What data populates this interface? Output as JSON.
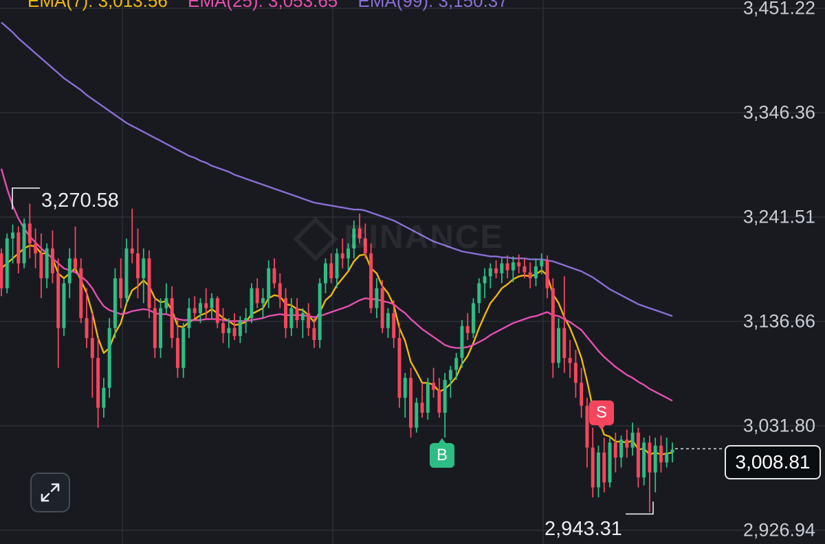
{
  "legend": {
    "ema7": "EMA(7): 3,013.56",
    "ema25": "EMA(25): 3,053.65",
    "ema99": "EMA(99): 3,150.37"
  },
  "colors": {
    "up": "#2ebd85",
    "down": "#f6465d",
    "ema7": "#f0b90b",
    "ema25": "#e84fb1",
    "ema99": "#8c6fd6",
    "grid": "#2b2f36"
  },
  "watermark": "BINANCE",
  "current_price": "3,008.81",
  "high_label": "3,270.58",
  "low_label": "2,943.31",
  "markers": {
    "buy": "B",
    "sell": "S"
  },
  "expand_icon": "expand-arrows-icon",
  "chart_data": {
    "type": "candlestick",
    "y_axis_ticks": [
      "3,451.22",
      "3,346.36",
      "3,241.51",
      "3,136.66",
      "3,031.80",
      "2,926.94"
    ],
    "ylim": [
      2926.94,
      3451.22
    ],
    "grid": true,
    "current_price": 3008.81,
    "high": 3270.58,
    "low": 2943.31,
    "ohlc": [
      [
        3205,
        3210,
        3162,
        3170
      ],
      [
        3170,
        3225,
        3165,
        3220
      ],
      [
        3220,
        3234,
        3195,
        3226
      ],
      [
        3226,
        3232,
        3185,
        3195
      ],
      [
        3195,
        3240,
        3190,
        3235
      ],
      [
        3235,
        3255,
        3200,
        3215
      ],
      [
        3215,
        3230,
        3190,
        3205
      ],
      [
        3205,
        3225,
        3160,
        3180
      ],
      [
        3180,
        3215,
        3170,
        3210
      ],
      [
        3210,
        3228,
        3175,
        3185
      ],
      [
        3185,
        3200,
        3090,
        3130
      ],
      [
        3130,
        3180,
        3122,
        3175
      ],
      [
        3175,
        3210,
        3160,
        3200
      ],
      [
        3200,
        3232,
        3185,
        3190
      ],
      [
        3190,
        3200,
        3135,
        3140
      ],
      [
        3140,
        3170,
        3110,
        3120
      ],
      [
        3120,
        3145,
        3060,
        3100
      ],
      [
        3100,
        3120,
        3030,
        3050
      ],
      [
        3050,
        3080,
        3040,
        3070
      ],
      [
        3070,
        3140,
        3060,
        3130
      ],
      [
        3130,
        3190,
        3120,
        3180
      ],
      [
        3180,
        3200,
        3150,
        3160
      ],
      [
        3160,
        3220,
        3155,
        3210
      ],
      [
        3210,
        3250,
        3195,
        3205
      ],
      [
        3205,
        3230,
        3160,
        3180
      ],
      [
        3180,
        3210,
        3155,
        3200
      ],
      [
        3200,
        3208,
        3140,
        3150
      ],
      [
        3150,
        3160,
        3100,
        3110
      ],
      [
        3110,
        3160,
        3100,
        3150
      ],
      [
        3150,
        3175,
        3145,
        3160
      ],
      [
        3160,
        3172,
        3110,
        3120
      ],
      [
        3120,
        3140,
        3080,
        3090
      ],
      [
        3090,
        3135,
        3080,
        3130
      ],
      [
        3130,
        3160,
        3120,
        3150
      ],
      [
        3150,
        3162,
        3140,
        3145
      ],
      [
        3145,
        3160,
        3135,
        3155
      ],
      [
        3155,
        3170,
        3140,
        3150
      ],
      [
        3150,
        3165,
        3140,
        3160
      ],
      [
        3160,
        3162,
        3130,
        3135
      ],
      [
        3135,
        3150,
        3115,
        3125
      ],
      [
        3125,
        3140,
        3110,
        3130
      ],
      [
        3130,
        3145,
        3118,
        3122
      ],
      [
        3122,
        3142,
        3115,
        3138
      ],
      [
        3138,
        3150,
        3125,
        3140
      ],
      [
        3140,
        3175,
        3135,
        3170
      ],
      [
        3170,
        3180,
        3150,
        3155
      ],
      [
        3155,
        3170,
        3140,
        3160
      ],
      [
        3160,
        3198,
        3150,
        3190
      ],
      [
        3190,
        3200,
        3170,
        3175
      ],
      [
        3175,
        3185,
        3150,
        3160
      ],
      [
        3160,
        3170,
        3120,
        3130
      ],
      [
        3130,
        3160,
        3122,
        3150
      ],
      [
        3150,
        3160,
        3130,
        3138
      ],
      [
        3138,
        3150,
        3120,
        3145
      ],
      [
        3145,
        3155,
        3122,
        3130
      ],
      [
        3130,
        3140,
        3110,
        3118
      ],
      [
        3118,
        3180,
        3110,
        3175
      ],
      [
        3175,
        3200,
        3165,
        3195
      ],
      [
        3195,
        3205,
        3175,
        3180
      ],
      [
        3180,
        3210,
        3170,
        3205
      ],
      [
        3205,
        3220,
        3190,
        3200
      ],
      [
        3200,
        3215,
        3188,
        3210
      ],
      [
        3210,
        3238,
        3200,
        3230
      ],
      [
        3230,
        3245,
        3215,
        3220
      ],
      [
        3220,
        3235,
        3200,
        3205
      ],
      [
        3205,
        3215,
        3145,
        3150
      ],
      [
        3150,
        3180,
        3140,
        3170
      ],
      [
        3170,
        3178,
        3125,
        3130
      ],
      [
        3130,
        3150,
        3120,
        3145
      ],
      [
        3145,
        3158,
        3110,
        3120
      ],
      [
        3120,
        3135,
        3050,
        3060
      ],
      [
        3060,
        3085,
        3040,
        3080
      ],
      [
        3080,
        3090,
        3020,
        3030
      ],
      [
        3030,
        3060,
        3025,
        3055
      ],
      [
        3055,
        3075,
        3040,
        3045
      ],
      [
        3045,
        3080,
        3038,
        3075
      ],
      [
        3075,
        3090,
        3060,
        3068
      ],
      [
        3068,
        3080,
        3040,
        3045
      ],
      [
        3045,
        3085,
        3020,
        3078
      ],
      [
        3078,
        3092,
        3060,
        3088
      ],
      [
        3088,
        3105,
        3078,
        3100
      ],
      [
        3100,
        3138,
        3090,
        3132
      ],
      [
        3132,
        3145,
        3118,
        3125
      ],
      [
        3125,
        3160,
        3120,
        3155
      ],
      [
        3155,
        3180,
        3145,
        3175
      ],
      [
        3175,
        3190,
        3160,
        3182
      ],
      [
        3182,
        3195,
        3170,
        3190
      ],
      [
        3190,
        3198,
        3180,
        3185
      ],
      [
        3185,
        3200,
        3175,
        3195
      ],
      [
        3195,
        3203,
        3180,
        3188
      ],
      [
        3188,
        3202,
        3176,
        3196
      ],
      [
        3196,
        3204,
        3185,
        3192
      ],
      [
        3192,
        3200,
        3180,
        3186
      ],
      [
        3186,
        3196,
        3170,
        3180
      ],
      [
        3180,
        3200,
        3172,
        3192
      ],
      [
        3192,
        3205,
        3184,
        3198
      ],
      [
        3198,
        3203,
        3160,
        3170
      ],
      [
        3170,
        3180,
        3080,
        3095
      ],
      [
        3095,
        3140,
        3090,
        3130
      ],
      [
        3130,
        3182,
        3085,
        3100
      ],
      [
        3100,
        3118,
        3080,
        3095
      ],
      [
        3095,
        3108,
        3060,
        3075
      ],
      [
        3075,
        3090,
        3040,
        3052
      ],
      [
        3052,
        3060,
        2990,
        3010
      ],
      [
        3010,
        3030,
        2960,
        2970
      ],
      [
        2970,
        3012,
        2960,
        3005
      ],
      [
        3005,
        3020,
        2965,
        2975
      ],
      [
        2975,
        3020,
        2970,
        3015
      ],
      [
        3015,
        3025,
        2985,
        3000
      ],
      [
        3000,
        3022,
        2990,
        3018
      ],
      [
        3018,
        3028,
        3000,
        3010
      ],
      [
        3010,
        3035,
        3002,
        3025
      ],
      [
        3025,
        3030,
        2970,
        2980
      ],
      [
        2980,
        3020,
        2972,
        3015
      ],
      [
        3015,
        3022,
        2945,
        2985
      ],
      [
        2985,
        3020,
        2965,
        3012
      ],
      [
        3012,
        3022,
        2985,
        2995
      ],
      [
        2995,
        3020,
        2990,
        3005
      ],
      [
        3005,
        3015,
        2995,
        3008
      ]
    ],
    "series": [
      {
        "name": "EMA(7)",
        "values": [
          3190,
          3195,
          3200,
          3205,
          3210,
          3213,
          3212,
          3205,
          3205,
          3200,
          3185,
          3180,
          3185,
          3190,
          3178,
          3165,
          3145,
          3120,
          3105,
          3110,
          3125,
          3135,
          3155,
          3168,
          3172,
          3178,
          3172,
          3160,
          3156,
          3157,
          3148,
          3132,
          3131,
          3136,
          3139,
          3143,
          3145,
          3149,
          3145,
          3140,
          3137,
          3133,
          3134,
          3136,
          3144,
          3147,
          3150,
          3160,
          3163,
          3162,
          3154,
          3153,
          3149,
          3148,
          3143,
          3136,
          3146,
          3158,
          3163,
          3173,
          3180,
          3187,
          3197,
          3203,
          3204,
          3190,
          3185,
          3172,
          3165,
          3153,
          3130,
          3117,
          3096,
          3086,
          3075,
          3075,
          3073,
          3066,
          3069,
          3074,
          3081,
          3094,
          3102,
          3115,
          3130,
          3143,
          3155,
          3162,
          3170,
          3174,
          3179,
          3182,
          3183,
          3182,
          3184,
          3188,
          3183,
          3164,
          3155,
          3141,
          3130,
          3116,
          3100,
          3077,
          3050,
          3039,
          3023,
          3021,
          3016,
          3016,
          3015,
          3017,
          3008,
          3009,
          3003,
          3005,
          3003,
          3004,
          3005
        ]
      },
      {
        "name": "EMA(25)",
        "values": [
          3290,
          3270,
          3253,
          3240,
          3230,
          3222,
          3216,
          3210,
          3205,
          3200,
          3195,
          3190,
          3188,
          3186,
          3182,
          3177,
          3170,
          3160,
          3152,
          3148,
          3146,
          3144,
          3145,
          3147,
          3148,
          3149,
          3148,
          3145,
          3144,
          3144,
          3142,
          3139,
          3138,
          3138,
          3138,
          3138,
          3139,
          3139,
          3139,
          3138,
          3137,
          3137,
          3137,
          3137,
          3138,
          3139,
          3140,
          3142,
          3143,
          3144,
          3143,
          3143,
          3143,
          3143,
          3142,
          3141,
          3142,
          3144,
          3146,
          3148,
          3150,
          3152,
          3155,
          3158,
          3160,
          3159,
          3159,
          3157,
          3156,
          3154,
          3149,
          3145,
          3139,
          3134,
          3129,
          3125,
          3121,
          3117,
          3113,
          3111,
          3110,
          3110,
          3111,
          3113,
          3116,
          3119,
          3123,
          3126,
          3129,
          3132,
          3135,
          3137,
          3139,
          3141,
          3142,
          3144,
          3146,
          3143,
          3142,
          3139,
          3136,
          3132,
          3128,
          3121,
          3114,
          3107,
          3101,
          3096,
          3091,
          3087,
          3083,
          3080,
          3076,
          3073,
          3069,
          3066,
          3063,
          3060,
          3057
        ]
      },
      {
        "name": "EMA(99)",
        "values": [
          3437,
          3432,
          3427,
          3421,
          3416,
          3411,
          3406,
          3401,
          3396,
          3391,
          3386,
          3381,
          3377,
          3373,
          3369,
          3364,
          3360,
          3356,
          3352,
          3348,
          3344,
          3340,
          3336,
          3333,
          3330,
          3327,
          3324,
          3321,
          3318,
          3315,
          3312,
          3309,
          3306,
          3303,
          3301,
          3298,
          3296,
          3293,
          3291,
          3289,
          3287,
          3284,
          3282,
          3280,
          3278,
          3276,
          3274,
          3272,
          3270,
          3268,
          3266,
          3264,
          3262,
          3260,
          3258,
          3256,
          3255,
          3254,
          3253,
          3252,
          3251,
          3250,
          3249,
          3249,
          3248,
          3246,
          3244,
          3242,
          3240,
          3238,
          3235,
          3232,
          3229,
          3226,
          3223,
          3220,
          3217,
          3215,
          3213,
          3211,
          3209,
          3207,
          3206,
          3205,
          3204,
          3203,
          3202,
          3202,
          3201,
          3201,
          3200,
          3200,
          3200,
          3199,
          3199,
          3199,
          3198,
          3197,
          3195,
          3193,
          3191,
          3189,
          3187,
          3184,
          3181,
          3177,
          3173,
          3169,
          3166,
          3163,
          3160,
          3157,
          3154,
          3152,
          3150,
          3148,
          3146,
          3144,
          3142
        ]
      }
    ]
  }
}
